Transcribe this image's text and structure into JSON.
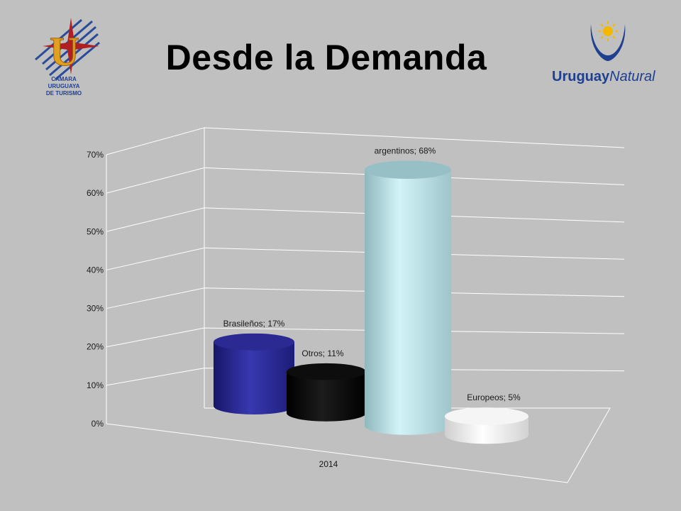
{
  "slide": {
    "title": "Desde la Demanda"
  },
  "logos": {
    "left": {
      "lines": [
        "CAMARA",
        "URUGUAYA",
        "DE TURISMO"
      ],
      "letter": "U"
    },
    "right": {
      "word_bold": "Uruguay",
      "word_light": "Natural"
    }
  },
  "colors": {
    "background": "#c0c0c0",
    "brand_blue": "#1f3f8f"
  },
  "chart_data": {
    "type": "bar",
    "style": "3d-cylinder",
    "categories": [
      "2014"
    ],
    "y_ticks": [
      "0%",
      "10%",
      "20%",
      "30%",
      "40%",
      "50%",
      "60%",
      "70%"
    ],
    "ylim": [
      0,
      70
    ],
    "grid": true,
    "series": [
      {
        "label": "Brasileños; 17%",
        "value": 17,
        "color": "#2c2c9c"
      },
      {
        "label": "Otros; 11%",
        "value": 11,
        "color": "#0a0a0a"
      },
      {
        "label": "argentinos; 68%",
        "value": 68,
        "color": "#bfeaf0"
      },
      {
        "label": "Europeos; 5%",
        "value": 5,
        "color": "#f2f2f2"
      }
    ]
  }
}
